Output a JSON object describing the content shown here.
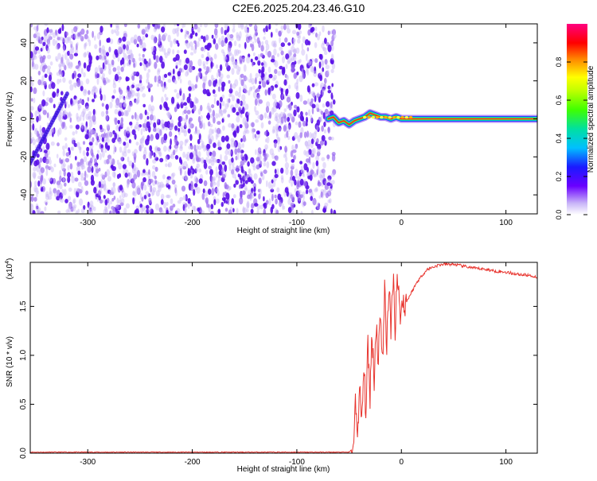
{
  "title": "C2E6.2025.204.23.46.G10",
  "colors": {
    "snr_line": "#e8342e",
    "axis": "#000000",
    "scatter": "#6a1ef0"
  },
  "colorbar": {
    "label": "Normalized spectral amplitude",
    "ticks": [
      "0.0",
      "0.2",
      "0.4",
      "0.6",
      "0.8"
    ],
    "tick_values": [
      0.0,
      0.2,
      0.4,
      0.6,
      0.8
    ],
    "range": [
      0,
      1
    ]
  },
  "chart_data": [
    {
      "type": "heatmap",
      "name": "spectrogram",
      "xlabel": "Height of straight line (km)",
      "ylabel": "Frequency (Hz)",
      "xlim": [
        -355,
        130
      ],
      "ylim": [
        -50,
        50
      ],
      "xticks": [
        -300,
        -200,
        -100,
        0,
        100
      ],
      "xtick_labels": [
        "-300",
        "-200",
        "-100",
        "0",
        "100"
      ],
      "yticks": [
        -40,
        -20,
        0,
        20,
        40
      ],
      "ytick_labels": [
        "-40",
        "-20",
        "0",
        "20",
        "40"
      ],
      "noise_region_x": [
        -355,
        -70
      ],
      "carrier": {
        "x": [
          -70,
          -65,
          -60,
          -55,
          -50,
          -45,
          -40,
          -35,
          -30,
          -25,
          -20,
          -15,
          -10,
          -5,
          0,
          10,
          20,
          130
        ],
        "y": [
          0,
          1,
          -2,
          -1,
          -3,
          -1,
          0,
          1,
          3,
          2,
          1,
          1,
          0,
          1,
          0,
          0,
          0,
          0
        ]
      }
    },
    {
      "type": "line",
      "name": "snr",
      "xlabel": "Height of straight line (km)",
      "ylabel": "SNR (10 * v/v)",
      "scale_note": "(x10",
      "scale_exp": "4",
      "xlim": [
        -355,
        130
      ],
      "ylim": [
        0,
        1.95
      ],
      "xticks": [
        -300,
        -200,
        -100,
        0,
        100
      ],
      "xtick_labels": [
        "-300",
        "-200",
        "-100",
        "0",
        "100"
      ],
      "yticks": [
        0,
        0.5,
        1.0,
        1.5
      ],
      "ytick_labels": [
        "0.0",
        "0.5",
        "1.0",
        "1.5"
      ],
      "series": [
        {
          "x": [
            -355,
            -300,
            -200,
            -100,
            -60,
            -50,
            -46,
            -44,
            -42,
            -40,
            -38,
            -36,
            -34,
            -32,
            -30,
            -28,
            -26,
            -24,
            -22,
            -20,
            -18,
            -16,
            -14,
            -12,
            -10,
            -8,
            -6,
            -4,
            -2,
            0,
            2,
            5,
            10,
            15,
            20,
            25,
            30,
            35,
            40,
            50,
            60,
            70,
            80,
            90,
            100,
            110,
            120,
            130
          ],
          "values": [
            0.01,
            0.01,
            0.01,
            0.01,
            0.01,
            0.01,
            0.05,
            0.5,
            0.2,
            0.65,
            0.3,
            0.85,
            0.45,
            1.05,
            0.6,
            1.25,
            0.75,
            1.35,
            0.95,
            1.5,
            0.9,
            1.65,
            1.1,
            1.75,
            1.2,
            1.85,
            1.3,
            1.85,
            1.5,
            1.45,
            1.55,
            1.55,
            1.65,
            1.75,
            1.82,
            1.88,
            1.9,
            1.92,
            1.93,
            1.93,
            1.91,
            1.89,
            1.88,
            1.86,
            1.85,
            1.83,
            1.82,
            1.8
          ]
        }
      ]
    }
  ]
}
